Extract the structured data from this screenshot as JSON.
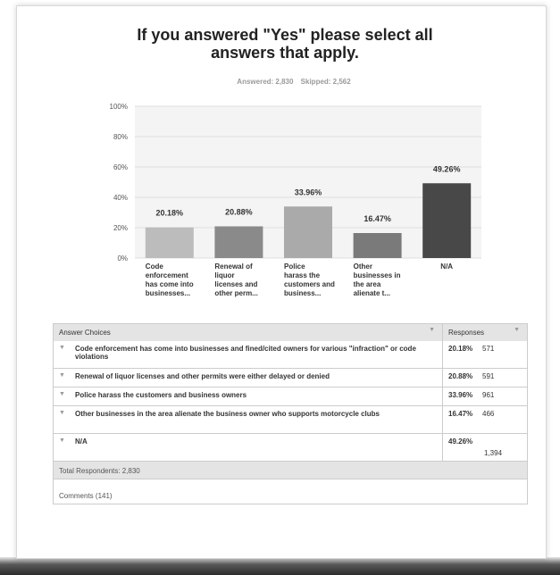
{
  "header": {
    "title": "If you answered \"Yes\" please select all answers that apply.",
    "answered": "Answered: 2,830",
    "skipped": "Skipped: 2,562"
  },
  "chart_data": {
    "type": "bar",
    "categories": [
      [
        "Code",
        "enforcement",
        "has come into",
        "businesses..."
      ],
      [
        "Renewal of",
        "liquor",
        "licenses and",
        "other perm..."
      ],
      [
        "Police",
        "harass the",
        "customers and",
        "business..."
      ],
      [
        "Other",
        "businesses in",
        "the area",
        "alienate t..."
      ],
      [
        "N/A"
      ]
    ],
    "values": [
      20.18,
      20.88,
      33.96,
      16.47,
      49.26
    ],
    "data_labels": [
      "20.18%",
      "20.88%",
      "33.96%",
      "16.47%",
      "49.26%"
    ],
    "colors": [
      "#bcbcbc",
      "#8a8a8a",
      "#aaaaaa",
      "#7a7a7a",
      "#484848"
    ],
    "yticks": [
      "0%",
      "20%",
      "40%",
      "60%",
      "80%",
      "100%"
    ],
    "ylim": [
      0,
      100
    ],
    "grid": true
  },
  "table": {
    "col1_header": "Answer Choices",
    "col2_header": "Responses",
    "rows": [
      {
        "text": "Code enforcement has come into businesses and fined/cited owners for various \"infraction\" or code violations",
        "pct": "20.18%",
        "count": "571"
      },
      {
        "text": "Renewal of liquor licenses and other permits were either delayed or denied",
        "pct": "20.88%",
        "count": "591"
      },
      {
        "text": "Police harass the customers and business owners",
        "pct": "33.96%",
        "count": "961"
      },
      {
        "text": "Other businesses in the area alienate the business owner who supports motorcycle clubs",
        "pct": "16.47%",
        "count": "466"
      },
      {
        "text": "N/A",
        "pct": "49.26%",
        "count": "1,394"
      }
    ],
    "total": "Total Respondents: 2,830",
    "comments": "Comments (141)"
  }
}
